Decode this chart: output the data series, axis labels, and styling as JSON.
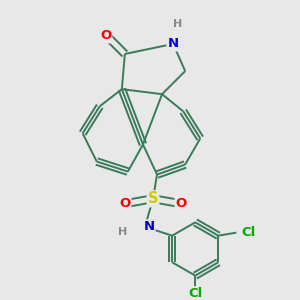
{
  "bg_color": "#e8e8e8",
  "bond_color": "#3a7a5a",
  "bond_width": 1.4,
  "atom_colors": {
    "O": "#ff0000",
    "N": "#0000cc",
    "S": "#cccc00",
    "Cl": "#00aa00",
    "H": "#888888",
    "C": "#3a7a5a"
  },
  "font_size": 9.5,
  "fig_size": [
    3.0,
    3.0
  ],
  "dpi": 100
}
